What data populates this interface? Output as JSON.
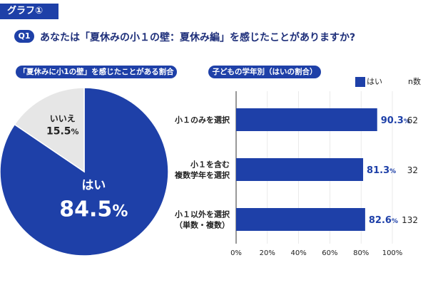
{
  "header": {
    "tag_label": "グラフ①",
    "q_badge": "Q1",
    "question": "あなたは「夏休みの小１の壁：夏休み編」を感じたことがありますか?"
  },
  "pie_title": "「夏休みに小1の壁」を感じたことがある割合",
  "bar_title": "子どもの学年別（はいの割合）",
  "legend_label": "はい",
  "n_header": "n数",
  "colors": {
    "accent": "#1e40a8",
    "no": "#e6e6e6",
    "text_dark": "#1e2f7a"
  },
  "chart_data": [
    {
      "type": "pie",
      "slices": [
        {
          "label": "はい",
          "value": 84.5,
          "display": "84.5",
          "unit": "%"
        },
        {
          "label": "いいえ",
          "value": 15.5,
          "display": "15.5",
          "unit": "%"
        }
      ]
    },
    {
      "type": "bar",
      "orientation": "horizontal",
      "series": [
        {
          "name": "はい",
          "values": [
            90.3,
            81.3,
            82.6
          ]
        }
      ],
      "categories": [
        [
          "小１のみを選択"
        ],
        [
          "小１を含む",
          "複数学年を選択"
        ],
        [
          "小１以外を選択",
          "（単数・複数）"
        ]
      ],
      "value_labels": [
        "90.3",
        "81.3",
        "82.6"
      ],
      "value_unit": "%",
      "n": [
        62,
        32,
        132
      ],
      "xlim": [
        0,
        100
      ],
      "ticks": [
        "0%",
        "20%",
        "40%",
        "60%",
        "80%",
        "100%"
      ]
    }
  ]
}
